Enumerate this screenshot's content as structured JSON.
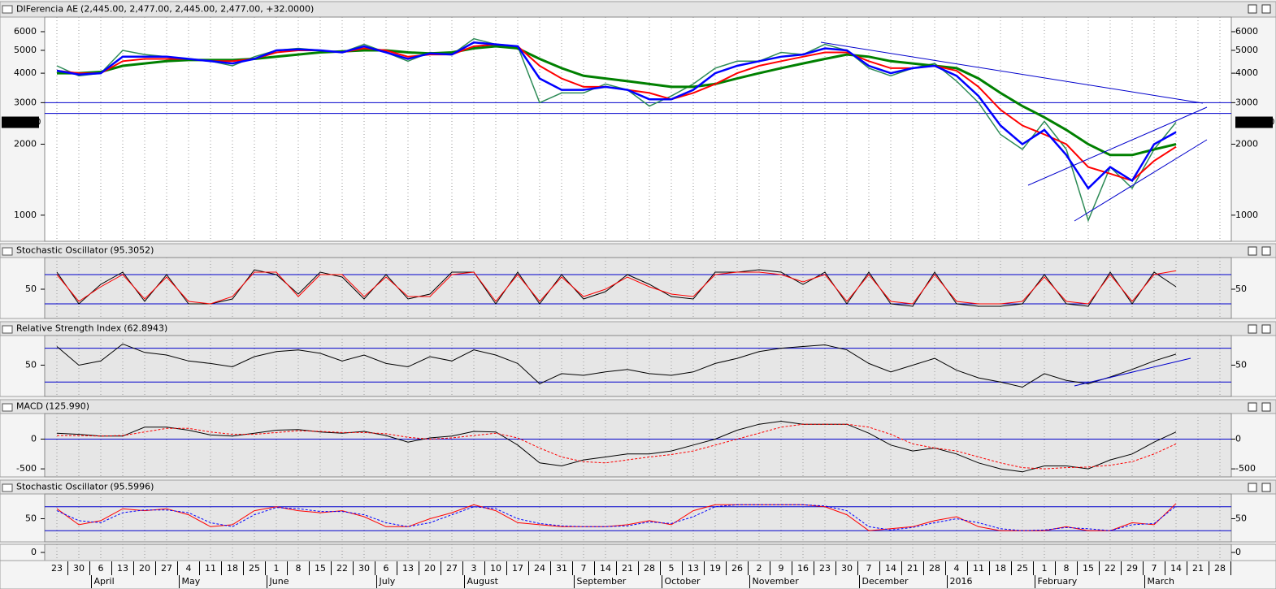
{
  "chart_data": [
    {
      "type": "line",
      "title": "DIFerencia AE",
      "subtitle": "(2,445.00, 2,477.00, 2,445.00, 2,477.00, +32.0000)",
      "subtitle_color": "#008000",
      "log_scale": true,
      "categories": [
        "23",
        "30",
        "6",
        "13",
        "20",
        "27",
        "4",
        "11",
        "18",
        "25",
        "1",
        "8",
        "15",
        "22",
        "30",
        "6",
        "13",
        "20",
        "27",
        "3",
        "10",
        "17",
        "24",
        "31",
        "7",
        "14",
        "21",
        "28",
        "5",
        "13",
        "19",
        "26",
        "2",
        "9",
        "16",
        "23",
        "30",
        "7",
        "14",
        "21",
        "28",
        "4",
        "11",
        "18",
        "25",
        "1",
        "8",
        "15",
        "22",
        "29",
        "7",
        "14",
        "21",
        "28"
      ],
      "month_labels": [
        null,
        null,
        "April",
        null,
        null,
        null,
        "May",
        null,
        null,
        null,
        "June",
        null,
        null,
        null,
        null,
        "July",
        null,
        null,
        null,
        "August",
        null,
        null,
        null,
        null,
        "September",
        null,
        null,
        null,
        "October",
        null,
        null,
        null,
        "November",
        null,
        null,
        null,
        null,
        "December",
        null,
        null,
        null,
        "2016",
        null,
        null,
        null,
        "February",
        null,
        null,
        null,
        null,
        "March",
        null,
        null,
        null
      ],
      "ylim": [
        775,
        6920
      ],
      "yticks": [
        1000,
        2000,
        3000,
        4000,
        5000,
        6000
      ],
      "levels": [
        3000,
        2700
      ],
      "level_color": "#0000cc",
      "last_value": 2477,
      "last_label": "2477.00",
      "series": [
        {
          "color": "#2e8b57",
          "width": 1.5,
          "values": [
            4300,
            3900,
            4000,
            5000,
            4800,
            4700,
            4600,
            4500,
            4300,
            4700,
            5000,
            5100,
            5000,
            4900,
            5300,
            4900,
            4500,
            4900,
            4800,
            5600,
            5300,
            5200,
            3000,
            3300,
            3300,
            3600,
            3400,
            2900,
            3200,
            3600,
            4200,
            4500,
            4500,
            4900,
            4800,
            5300,
            5000,
            4200,
            3900,
            4200,
            4400,
            3700,
            3000,
            2200,
            1900,
            2500,
            1900,
            950,
            1600,
            1300,
            1900,
            2477,
            null,
            null
          ]
        },
        {
          "color": "#008000",
          "width": 3,
          "values": [
            4000,
            4000,
            4050,
            4300,
            4400,
            4500,
            4550,
            4550,
            4550,
            4600,
            4700,
            4800,
            4900,
            4950,
            5000,
            5000,
            4900,
            4850,
            4900,
            5100,
            5200,
            5100,
            4600,
            4200,
            3900,
            3800,
            3700,
            3600,
            3500,
            3500,
            3600,
            3800,
            4000,
            4200,
            4400,
            4600,
            4800,
            4700,
            4500,
            4400,
            4300,
            4200,
            3800,
            3300,
            2900,
            2600,
            2300,
            2000,
            1800,
            1800,
            1900,
            2000,
            null,
            null
          ]
        },
        {
          "color": "#ff0000",
          "width": 2,
          "values": [
            4100,
            4000,
            4000,
            4500,
            4600,
            4600,
            4600,
            4500,
            4500,
            4600,
            4900,
            5000,
            5000,
            4900,
            5100,
            5000,
            4700,
            4800,
            4800,
            5200,
            5300,
            5200,
            4300,
            3800,
            3500,
            3500,
            3400,
            3300,
            3100,
            3300,
            3600,
            4000,
            4300,
            4500,
            4700,
            4900,
            4900,
            4500,
            4200,
            4200,
            4300,
            4100,
            3500,
            2800,
            2400,
            2200,
            2000,
            1600,
            1500,
            1400,
            1700,
            1950,
            null,
            null
          ]
        },
        {
          "color": "#0000ff",
          "width": 2.5,
          "values": [
            4100,
            3950,
            4000,
            4700,
            4700,
            4700,
            4600,
            4500,
            4400,
            4600,
            5000,
            5050,
            5000,
            4900,
            5200,
            4900,
            4600,
            4850,
            4800,
            5400,
            5300,
            5200,
            3800,
            3400,
            3400,
            3500,
            3400,
            3100,
            3100,
            3400,
            4000,
            4300,
            4500,
            4700,
            4800,
            5100,
            5000,
            4300,
            4000,
            4200,
            4300,
            3900,
            3200,
            2400,
            2000,
            2300,
            1800,
            1300,
            1600,
            1400,
            2000,
            2250,
            null,
            null
          ]
        }
      ]
    },
    {
      "type": "line",
      "title": "Stochastic Oscillator",
      "subtitle": "(95.3052)",
      "subtitle_color": "#ff0000",
      "ylim": [
        -10,
        115
      ],
      "yticks": [
        50
      ],
      "levels": [
        80,
        20
      ],
      "level_color": "#0000cc",
      "series": [
        {
          "color": "#000000",
          "width": 1,
          "values": [
            85,
            20,
            60,
            85,
            25,
            80,
            20,
            20,
            30,
            90,
            80,
            40,
            85,
            75,
            30,
            80,
            30,
            40,
            85,
            85,
            20,
            85,
            20,
            80,
            30,
            45,
            80,
            60,
            35,
            30,
            85,
            85,
            90,
            85,
            60,
            85,
            20,
            85,
            20,
            15,
            85,
            20,
            15,
            15,
            20,
            80,
            20,
            15,
            85,
            20,
            85,
            55,
            null,
            null
          ]
        },
        {
          "color": "#ff0000",
          "width": 1,
          "values": [
            80,
            25,
            55,
            80,
            30,
            75,
            25,
            20,
            35,
            85,
            85,
            35,
            80,
            80,
            35,
            75,
            35,
            35,
            80,
            85,
            25,
            80,
            25,
            75,
            35,
            50,
            75,
            55,
            40,
            35,
            80,
            85,
            85,
            80,
            65,
            80,
            25,
            80,
            25,
            20,
            80,
            25,
            20,
            20,
            25,
            75,
            25,
            20,
            80,
            25,
            80,
            88,
            null,
            null
          ]
        }
      ]
    },
    {
      "type": "line",
      "title": "Relative Strength Index",
      "subtitle": "(62.8943)",
      "subtitle_color": "#000000",
      "ylim": [
        13,
        85
      ],
      "yticks": [
        50
      ],
      "levels": [
        70,
        30
      ],
      "level_color": "#0000cc",
      "series": [
        {
          "color": "#000000",
          "width": 1,
          "values": [
            72,
            50,
            55,
            75,
            65,
            62,
            55,
            52,
            48,
            60,
            66,
            68,
            64,
            55,
            62,
            52,
            48,
            60,
            55,
            68,
            62,
            52,
            28,
            40,
            38,
            42,
            45,
            40,
            38,
            42,
            52,
            58,
            66,
            70,
            72,
            74,
            68,
            52,
            42,
            50,
            58,
            44,
            35,
            30,
            24,
            40,
            32,
            28,
            36,
            45,
            55,
            63,
            null,
            null
          ]
        }
      ]
    },
    {
      "type": "line",
      "title": "MACD",
      "subtitle": "(125.990)",
      "subtitle_color": "#000000",
      "ylim": [
        -635,
        430
      ],
      "yticks": [
        {
          "value": -500,
          "label": "-500"
        },
        0
      ],
      "levels": [
        0
      ],
      "level_color": "#0000cc",
      "series": [
        {
          "color": "#000000",
          "width": 1,
          "values": [
            100,
            80,
            50,
            50,
            200,
            200,
            150,
            70,
            50,
            100,
            150,
            160,
            120,
            100,
            130,
            60,
            -50,
            20,
            50,
            130,
            120,
            -100,
            -400,
            -450,
            -350,
            -300,
            -250,
            -250,
            -200,
            -100,
            0,
            150,
            250,
            300,
            250,
            250,
            250,
            100,
            -100,
            -200,
            -150,
            -250,
            -400,
            -500,
            -550,
            -450,
            -450,
            -500,
            -350,
            -250,
            -50,
            120,
            null,
            null
          ]
        },
        {
          "color": "#ff0000",
          "width": 1,
          "dashed": true,
          "values": [
            60,
            60,
            50,
            60,
            120,
            180,
            180,
            120,
            80,
            80,
            110,
            140,
            130,
            110,
            110,
            90,
            30,
            0,
            20,
            60,
            100,
            20,
            -150,
            -300,
            -380,
            -400,
            -350,
            -300,
            -260,
            -200,
            -100,
            0,
            100,
            200,
            250,
            250,
            250,
            200,
            80,
            -80,
            -150,
            -200,
            -300,
            -400,
            -480,
            -500,
            -480,
            -470,
            -440,
            -380,
            -250,
            -80,
            null,
            null
          ]
        }
      ]
    },
    {
      "type": "line",
      "title": "Stochastic Oscillator",
      "subtitle": "(95.5996)",
      "subtitle_color": "#ff0000",
      "ylim": [
        -8,
        112
      ],
      "yticks": [
        50
      ],
      "levels": [
        80,
        20
      ],
      "level_color": "#0000cc",
      "series": [
        {
          "color": "#ff0000",
          "width": 1,
          "values": [
            75,
            35,
            45,
            75,
            70,
            75,
            60,
            30,
            35,
            70,
            80,
            70,
            65,
            70,
            55,
            30,
            30,
            50,
            65,
            85,
            70,
            40,
            35,
            30,
            30,
            30,
            35,
            45,
            35,
            70,
            85,
            85,
            85,
            85,
            85,
            80,
            60,
            20,
            25,
            30,
            45,
            55,
            30,
            20,
            20,
            20,
            30,
            20,
            20,
            40,
            35,
            88,
            null,
            null
          ]
        },
        {
          "color": "#0000ff",
          "width": 1,
          "dashed": true,
          "values": [
            70,
            45,
            40,
            65,
            72,
            72,
            65,
            40,
            30,
            60,
            78,
            75,
            68,
            68,
            60,
            40,
            30,
            40,
            60,
            80,
            75,
            50,
            38,
            32,
            30,
            30,
            32,
            42,
            38,
            55,
            80,
            85,
            85,
            85,
            85,
            82,
            70,
            30,
            22,
            28,
            40,
            50,
            40,
            25,
            20,
            22,
            28,
            25,
            20,
            35,
            38,
            82,
            null,
            null
          ]
        }
      ]
    },
    {
      "type": "line",
      "ylim": [
        -1,
        1
      ],
      "yticks": [
        0
      ],
      "series": []
    }
  ]
}
